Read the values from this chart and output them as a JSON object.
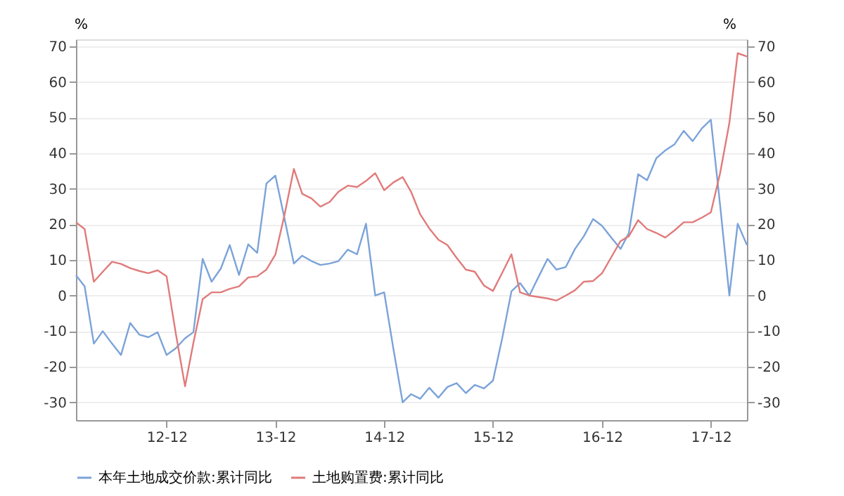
{
  "chart_data": {
    "type": "line",
    "x": [
      "2012-02",
      "2012-03",
      "2012-04",
      "2012-05",
      "2012-06",
      "2012-07",
      "2012-08",
      "2012-09",
      "2012-10",
      "2012-11",
      "2012-12",
      "2013-01",
      "2013-02",
      "2013-03",
      "2013-04",
      "2013-05",
      "2013-06",
      "2013-07",
      "2013-08",
      "2013-09",
      "2013-10",
      "2013-11",
      "2013-12",
      "2014-01",
      "2014-02",
      "2014-03",
      "2014-04",
      "2014-05",
      "2014-06",
      "2014-07",
      "2014-08",
      "2014-09",
      "2014-10",
      "2014-11",
      "2014-12",
      "2015-01",
      "2015-02",
      "2015-03",
      "2015-04",
      "2015-05",
      "2015-06",
      "2015-07",
      "2015-08",
      "2015-09",
      "2015-10",
      "2015-11",
      "2015-12",
      "2016-01",
      "2016-02",
      "2016-03",
      "2016-04",
      "2016-05",
      "2016-06",
      "2016-07",
      "2016-08",
      "2016-09",
      "2016-10",
      "2016-11",
      "2016-12",
      "2017-01",
      "2017-02",
      "2017-03",
      "2017-04",
      "2017-05",
      "2017-06",
      "2017-07",
      "2017-08",
      "2017-09",
      "2017-10",
      "2017-11",
      "2017-12",
      "2018-01",
      "2018-02",
      "2018-03",
      "2018-04"
    ],
    "series": [
      {
        "name": "本年土地成交价款:累计同比",
        "color": "#7ba3d9",
        "values": [
          5.7,
          2.6,
          -13.5,
          -10,
          -13.5,
          -16.7,
          -7.7,
          -11,
          -11.7,
          -10.3,
          -16.7,
          -14.8,
          -12,
          -10.3,
          10.3,
          3.9,
          7.6,
          14.2,
          5.8,
          14.4,
          12,
          31.5,
          33.7,
          21.5,
          9,
          11.2,
          9.7,
          8.6,
          9,
          9.7,
          12.9,
          11.6,
          20.2,
          0,
          0.9,
          -15,
          -30,
          -27.7,
          -29,
          -25.9,
          -28.7,
          -25.7,
          -24.6,
          -27.4,
          -25.1,
          -26.1,
          -23.9,
          -12,
          1.2,
          3.5,
          0,
          5.1,
          10.3,
          7.3,
          8,
          13.1,
          16.7,
          21.5,
          19.6,
          16.3,
          13.1,
          17.6,
          34.1,
          32.4,
          38.6,
          40.8,
          42.5,
          46.3,
          43.4,
          47,
          49.4,
          25.4,
          0,
          20.2,
          14.2
        ]
      },
      {
        "name": "土地购置费:累计同比",
        "color": "#e07b7b",
        "axis": "y2",
        "values": [
          20.6,
          18.7,
          3.9,
          6.7,
          9.5,
          8.9,
          7.7,
          6.9,
          6.3,
          7.1,
          5.4,
          -10.7,
          -25.5,
          -13.3,
          -1,
          0.9,
          0.9,
          1.9,
          2.6,
          5.1,
          5.4,
          7.3,
          11.5,
          22.8,
          35.6,
          28.6,
          27.3,
          25,
          26.3,
          29.2,
          30.9,
          30.5,
          32.2,
          34.4,
          29.6,
          31.8,
          33.3,
          29.2,
          22.8,
          18.9,
          15.7,
          14.2,
          10.6,
          7.3,
          6.7,
          2.8,
          1.3,
          6.4,
          11.6,
          0.9,
          0,
          -0.4,
          -0.8,
          -1.4,
          0,
          1.5,
          3.9,
          4.1,
          6.3,
          10.8,
          15.3,
          16.7,
          21.2,
          18.7,
          17.6,
          16.3,
          18.3,
          20.6,
          20.6,
          21.9,
          23.4,
          34.4,
          48.5,
          68.1,
          67.2
        ]
      }
    ],
    "xlim": [
      "2012-02",
      "2018-04"
    ],
    "xticks": [
      {
        "value": "2012-12",
        "label": "12-12"
      },
      {
        "value": "2013-12",
        "label": "13-12"
      },
      {
        "value": "2014-12",
        "label": "14-12"
      },
      {
        "value": "2015-12",
        "label": "15-12"
      },
      {
        "value": "2016-12",
        "label": "16-12"
      },
      {
        "value": "2017-12",
        "label": "17-12"
      }
    ],
    "ylabel": "%",
    "y2label": "%",
    "ylim": [
      -35,
      72
    ],
    "yticks": [
      -30,
      -20,
      -10,
      0,
      10,
      20,
      30,
      40,
      50,
      60,
      70
    ],
    "y2lim": [
      -35,
      72
    ],
    "y2ticks": [
      -30,
      -20,
      -10,
      0,
      10,
      20,
      30,
      40,
      50,
      60,
      70
    ],
    "grid": "y",
    "legend": "bottom",
    "marker": "none",
    "line_style": "solid"
  }
}
